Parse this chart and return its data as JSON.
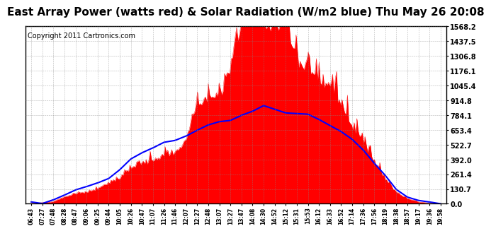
{
  "title": "East Array Power (watts red) & Solar Radiation (W/m2 blue) Thu May 26 20:08",
  "copyright": "Copyright 2011 Cartronics.com",
  "y_max": 1568.2,
  "y_min": 0.0,
  "y_ticks": [
    0.0,
    130.7,
    261.4,
    392.0,
    522.7,
    653.4,
    784.1,
    914.8,
    1045.4,
    1176.1,
    1306.8,
    1437.5,
    1568.2
  ],
  "x_labels": [
    "06:43",
    "07:27",
    "07:48",
    "08:28",
    "08:47",
    "09:06",
    "09:25",
    "09:44",
    "10:05",
    "10:26",
    "10:47",
    "11:07",
    "11:26",
    "11:46",
    "12:07",
    "12:27",
    "12:48",
    "13:07",
    "13:27",
    "13:47",
    "14:08",
    "14:30",
    "14:52",
    "15:12",
    "15:31",
    "15:53",
    "16:12",
    "16:33",
    "16:52",
    "17:14",
    "17:36",
    "17:56",
    "18:19",
    "18:38",
    "18:57",
    "19:17",
    "19:36",
    "19:58"
  ],
  "power_color": "#ff0000",
  "radiation_color": "#0000ff",
  "background_color": "#ffffff",
  "grid_color": "#888888",
  "title_fontsize": 11,
  "copyright_fontsize": 7,
  "power_data": [
    3,
    8,
    18,
    55,
    75,
    95,
    125,
    145,
    195,
    275,
    315,
    345,
    375,
    415,
    510,
    680,
    790,
    880,
    1080,
    1390,
    1490,
    1510,
    1390,
    1290,
    1190,
    1090,
    990,
    890,
    790,
    640,
    490,
    340,
    190,
    90,
    40,
    15,
    4,
    1
  ],
  "power_jag": [
    0,
    4,
    8,
    12,
    18,
    8,
    28,
    18,
    38,
    58,
    78,
    98,
    118,
    78,
    148,
    198,
    298,
    248,
    398,
    498,
    198,
    298,
    398,
    298,
    198,
    98,
    148,
    98,
    78,
    58,
    38,
    28,
    18,
    8,
    4,
    2,
    1,
    0
  ],
  "rad_data": [
    2,
    5,
    28,
    78,
    118,
    158,
    198,
    238,
    298,
    378,
    448,
    498,
    528,
    558,
    598,
    648,
    698,
    728,
    748,
    778,
    818,
    858,
    838,
    818,
    798,
    778,
    748,
    698,
    648,
    578,
    478,
    368,
    238,
    128,
    58,
    18,
    4,
    1
  ]
}
